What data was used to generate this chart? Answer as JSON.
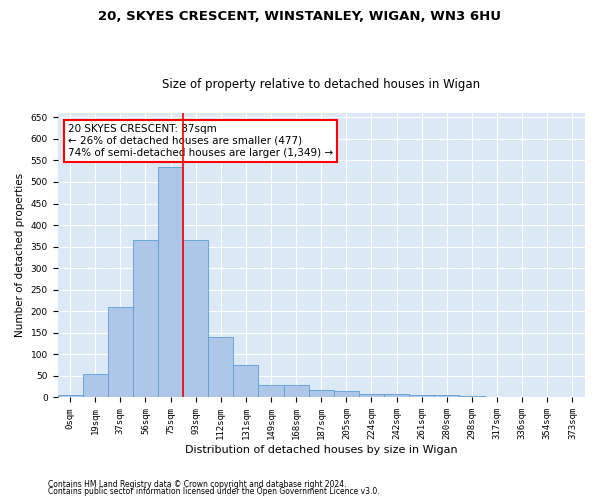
{
  "title1": "20, SKYES CRESCENT, WINSTANLEY, WIGAN, WN3 6HU",
  "title2": "Size of property relative to detached houses in Wigan",
  "xlabel": "Distribution of detached houses by size in Wigan",
  "ylabel": "Number of detached properties",
  "footnote1": "Contains HM Land Registry data © Crown copyright and database right 2024.",
  "footnote2": "Contains public sector information licensed under the Open Government Licence v3.0.",
  "bar_labels": [
    "0sqm",
    "19sqm",
    "37sqm",
    "56sqm",
    "75sqm",
    "93sqm",
    "112sqm",
    "131sqm",
    "149sqm",
    "168sqm",
    "187sqm",
    "205sqm",
    "224sqm",
    "242sqm",
    "261sqm",
    "280sqm",
    "298sqm",
    "317sqm",
    "336sqm",
    "354sqm",
    "373sqm"
  ],
  "bar_values": [
    5,
    55,
    210,
    365,
    535,
    365,
    140,
    75,
    30,
    30,
    18,
    15,
    8,
    8,
    6,
    5,
    3,
    1,
    1,
    1,
    1
  ],
  "bar_color": "#aec6e8",
  "bar_edge_color": "#5a9fd4",
  "vline_color": "red",
  "vline_x": 4.5,
  "annotation_text": "20 SKYES CRESCENT: 87sqm\n← 26% of detached houses are smaller (477)\n74% of semi-detached houses are larger (1,349) →",
  "annotation_box_color": "white",
  "annotation_box_edge_color": "red",
  "ylim": [
    0,
    660
  ],
  "yticks": [
    0,
    50,
    100,
    150,
    200,
    250,
    300,
    350,
    400,
    450,
    500,
    550,
    600,
    650
  ],
  "plot_bg_color": "#dce8f5",
  "grid_color": "white",
  "title1_fontsize": 9.5,
  "title2_fontsize": 8.5,
  "xlabel_fontsize": 8,
  "ylabel_fontsize": 7.5,
  "tick_fontsize": 6.5,
  "annotation_fontsize": 7.5,
  "footnote_fontsize": 5.5
}
